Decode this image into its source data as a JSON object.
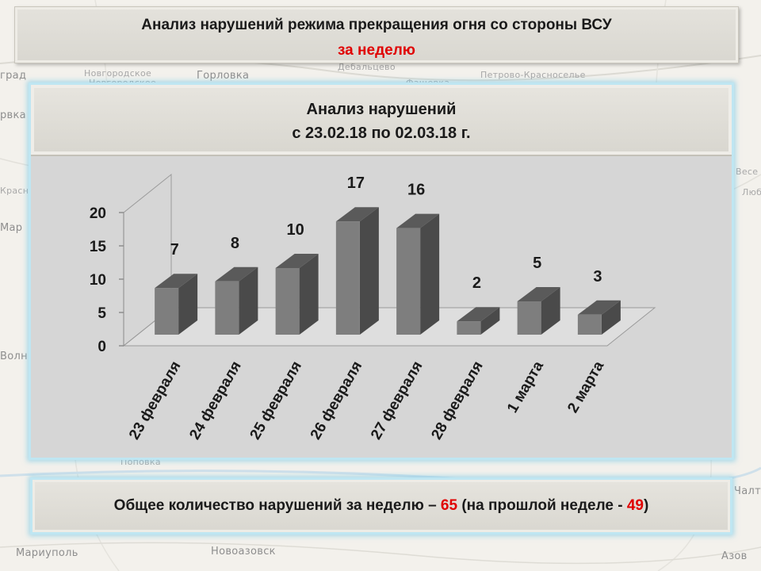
{
  "colors": {
    "bar_front": "#7e7e7e",
    "bar_top": "#5a5a5a",
    "bar_side": "#4a4a4a",
    "accent_red": "#e00000",
    "panel_glow": "#bfe6f2"
  },
  "map_labels": [
    {
      "text": "Новгородское",
      "id": "novgorodskoe-top"
    },
    {
      "text": "Новгородское",
      "id": "novgorodskoe"
    },
    {
      "text": "Горловка",
      "id": "gorlovka"
    },
    {
      "text": "Дебальцево",
      "id": "debaltsevo"
    },
    {
      "text": "Петрово-Красноселье",
      "id": "petrovo-krasnoselie"
    },
    {
      "text": "Фащевка",
      "id": "fashchevka"
    },
    {
      "text": "град",
      "id": "grad-left"
    },
    {
      "text": "рвка",
      "id": "rvka-left"
    },
    {
      "text": "Красн",
      "id": "krasn-left"
    },
    {
      "text": "Мар",
      "id": "mar-left"
    },
    {
      "text": "Волн",
      "id": "voln-left"
    },
    {
      "text": "Поповка",
      "id": "popovka"
    },
    {
      "text": "Новоазовск",
      "id": "novoazovsk"
    },
    {
      "text": "Мариуполь",
      "id": "mariupol"
    },
    {
      "text": "Азов",
      "id": "azov"
    },
    {
      "text": "Чалт",
      "id": "chalt"
    },
    {
      "text": "Весе",
      "id": "vese"
    },
    {
      "text": "Люб",
      "id": "lyub"
    }
  ],
  "header": {
    "title": "Анализ нарушений режима прекращения огня со стороны ВСУ",
    "subtitle": "за неделю"
  },
  "chart_title": {
    "line1": "Анализ нарушений",
    "line2": "с 23.02.18 по 02.03.18 г."
  },
  "chart_data": {
    "type": "bar",
    "style": "3d-column",
    "categories": [
      "23 февраля",
      "24 февраля",
      "25 февраля",
      "26 февраля",
      "27 февраля",
      "28 февраля",
      "1 марта",
      "2 марта"
    ],
    "values": [
      7,
      8,
      10,
      17,
      16,
      2,
      5,
      3
    ],
    "ylim": [
      0,
      20
    ],
    "yticks": [
      0,
      5,
      10,
      15,
      20
    ],
    "grid": false,
    "legend": "none",
    "data_labels": true
  },
  "summary": {
    "prefix": "Общее количество нарушений за неделю – ",
    "total": "65",
    "middle": " (на прошлой неделе - ",
    "previous": "49",
    "suffix": ")"
  }
}
